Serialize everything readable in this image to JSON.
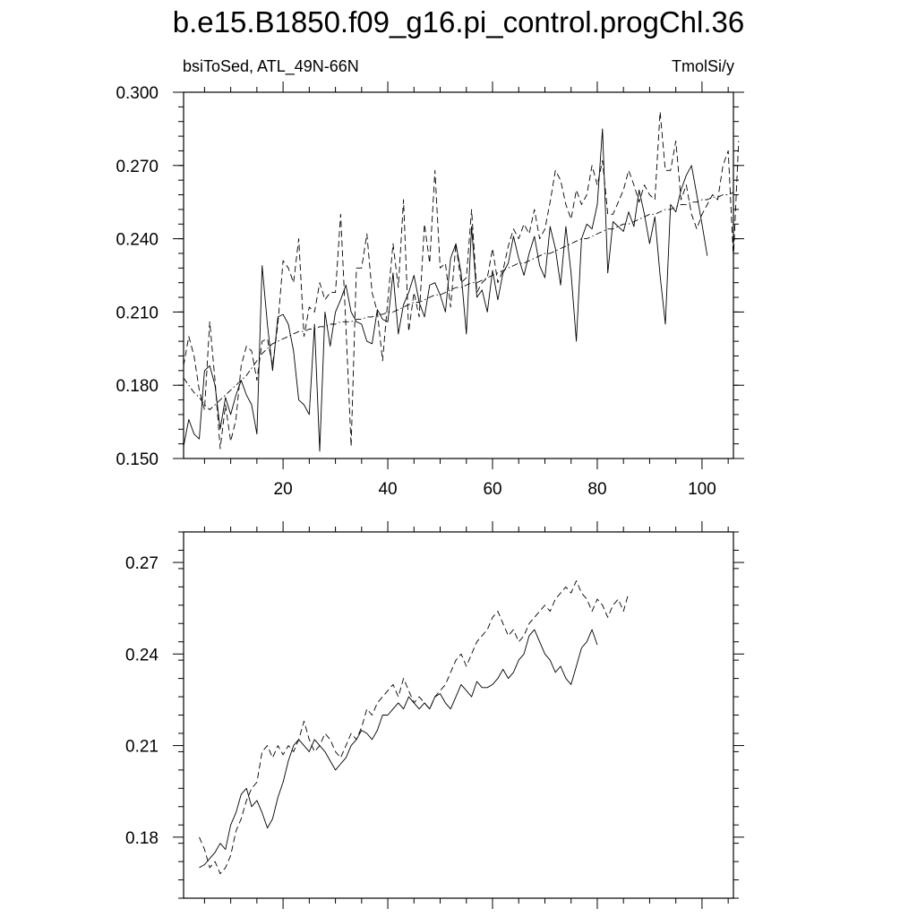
{
  "figure": {
    "title": "b.e15.B1850.f09_g16.pi_control.progChl.36",
    "subtitle_left": "bsiToSed, ATL_49N-66N",
    "subtitle_right": "TmolSi/y"
  },
  "chart_data": [
    {
      "type": "line",
      "xlim": [
        1,
        106
      ],
      "ylim": [
        0.15,
        0.3
      ],
      "x_ticks": [
        20,
        40,
        60,
        80,
        100
      ],
      "y_ticks": [
        "0.150",
        "0.180",
        "0.210",
        "0.240",
        "0.270",
        "0.300"
      ],
      "grid": false,
      "series": [
        {
          "style": "solid",
          "x_start": 1,
          "values": [
            0.155,
            0.166,
            0.16,
            0.158,
            0.186,
            0.188,
            0.18,
            0.162,
            0.175,
            0.168,
            0.176,
            0.182,
            0.176,
            0.172,
            0.16,
            0.229,
            0.205,
            0.186,
            0.208,
            0.209,
            0.205,
            0.194,
            0.174,
            0.172,
            0.168,
            0.205,
            0.153,
            0.21,
            0.196,
            0.21,
            0.215,
            0.221,
            0.21,
            0.206,
            0.205,
            0.198,
            0.197,
            0.211,
            0.207,
            0.206,
            0.226,
            0.201,
            0.213,
            0.218,
            0.225,
            0.214,
            0.208,
            0.221,
            0.222,
            0.217,
            0.21,
            0.232,
            0.238,
            0.226,
            0.201,
            0.245,
            0.216,
            0.219,
            0.21,
            0.227,
            0.215,
            0.226,
            0.23,
            0.241,
            0.232,
            0.225,
            0.234,
            0.241,
            0.229,
            0.224,
            0.245,
            0.236,
            0.221,
            0.245,
            0.226,
            0.198,
            0.24,
            0.246,
            0.244,
            0.254,
            0.285,
            0.226,
            0.247,
            0.245,
            0.243,
            0.251,
            0.245,
            0.26,
            0.25,
            0.238,
            0.249,
            0.225,
            0.205,
            0.254,
            0.251,
            0.26,
            0.266,
            0.27,
            0.258,
            0.246,
            0.233
          ]
        },
        {
          "style": "dashed",
          "x_start": 1,
          "values": [
            0.188,
            0.2,
            0.192,
            0.178,
            0.17,
            0.206,
            0.182,
            0.154,
            0.172,
            0.157,
            0.166,
            0.188,
            0.196,
            0.194,
            0.182,
            0.198,
            0.199,
            0.188,
            0.205,
            0.231,
            0.228,
            0.222,
            0.24,
            0.2,
            0.212,
            0.21,
            0.222,
            0.215,
            0.218,
            0.218,
            0.25,
            0.204,
            0.155,
            0.228,
            0.228,
            0.242,
            0.218,
            0.21,
            0.19,
            0.215,
            0.238,
            0.22,
            0.256,
            0.202,
            0.218,
            0.208,
            0.246,
            0.23,
            0.268,
            0.228,
            0.23,
            0.212,
            0.238,
            0.222,
            0.224,
            0.252,
            0.218,
            0.222,
            0.224,
            0.236,
            0.222,
            0.227,
            0.237,
            0.244,
            0.24,
            0.246,
            0.242,
            0.252,
            0.24,
            0.244,
            0.255,
            0.268,
            0.264,
            0.254,
            0.248,
            0.26,
            0.254,
            0.258,
            0.27,
            0.262,
            0.272,
            0.25,
            0.25,
            0.255,
            0.26,
            0.268,
            0.262,
            0.255,
            0.262,
            0.258,
            0.256,
            0.292,
            0.268,
            0.268,
            0.28,
            0.256,
            0.262,
            0.25,
            0.244,
            0.25,
            0.254,
            0.258,
            0.256,
            0.27,
            0.276,
            0.232,
            0.28
          ]
        },
        {
          "style": "dash-dot",
          "x_start": 1,
          "values": [
            0.183,
            0.18,
            0.177,
            0.175,
            0.172,
            0.17,
            0.172,
            0.174,
            0.176,
            0.178,
            0.18,
            0.182,
            0.184,
            0.187,
            0.19,
            0.193,
            0.195,
            0.197,
            0.198,
            0.199,
            0.2,
            0.201,
            0.202,
            0.202,
            0.203,
            0.203,
            0.204,
            0.204,
            0.205,
            0.205,
            0.206,
            0.206,
            0.206,
            0.207,
            0.207,
            0.208,
            0.208,
            0.209,
            0.209,
            0.21,
            0.21,
            0.211,
            0.212,
            0.213,
            0.214,
            0.214,
            0.215,
            0.216,
            0.217,
            0.217,
            0.218,
            0.219,
            0.22,
            0.22,
            0.221,
            0.222,
            0.222,
            0.223,
            0.224,
            0.225,
            0.226,
            0.227,
            0.228,
            0.229,
            0.23,
            0.23,
            0.231,
            0.232,
            0.233,
            0.234,
            0.234,
            0.235,
            0.236,
            0.237,
            0.238,
            0.239,
            0.24,
            0.24,
            0.241,
            0.242,
            0.243,
            0.244,
            0.244,
            0.245,
            0.246,
            0.246,
            0.247,
            0.248,
            0.249,
            0.25,
            0.25,
            0.251,
            0.252,
            0.252,
            0.253,
            0.254,
            0.254,
            0.255,
            0.255,
            0.256,
            0.256,
            0.257,
            0.257,
            0.258,
            0.258,
            0.259
          ]
        }
      ]
    },
    {
      "type": "line",
      "xlim": [
        1,
        106
      ],
      "ylim": [
        0.16,
        0.28
      ],
      "y_ticks": [
        "0.18",
        "0.21",
        "0.24",
        "0.27"
      ],
      "grid": false,
      "series": [
        {
          "style": "solid",
          "x_start": 4,
          "values": [
            0.17,
            0.171,
            0.173,
            0.175,
            0.178,
            0.176,
            0.184,
            0.188,
            0.194,
            0.196,
            0.19,
            0.192,
            0.188,
            0.183,
            0.186,
            0.193,
            0.198,
            0.205,
            0.21,
            0.212,
            0.21,
            0.208,
            0.212,
            0.21,
            0.208,
            0.205,
            0.202,
            0.204,
            0.206,
            0.21,
            0.212,
            0.215,
            0.214,
            0.212,
            0.215,
            0.22,
            0.22,
            0.222,
            0.224,
            0.222,
            0.226,
            0.224,
            0.222,
            0.224,
            0.222,
            0.226,
            0.227,
            0.224,
            0.222,
            0.226,
            0.23,
            0.228,
            0.226,
            0.231,
            0.229,
            0.229,
            0.23,
            0.232,
            0.235,
            0.232,
            0.234,
            0.238,
            0.24,
            0.246,
            0.248,
            0.244,
            0.24,
            0.238,
            0.234,
            0.236,
            0.232,
            0.23,
            0.236,
            0.242,
            0.244,
            0.248,
            0.243
          ]
        },
        {
          "style": "dashed",
          "x_start": 4,
          "values": [
            0.18,
            0.176,
            0.17,
            0.172,
            0.168,
            0.17,
            0.174,
            0.182,
            0.186,
            0.192,
            0.196,
            0.198,
            0.208,
            0.21,
            0.206,
            0.21,
            0.207,
            0.21,
            0.208,
            0.212,
            0.218,
            0.212,
            0.208,
            0.21,
            0.214,
            0.212,
            0.208,
            0.206,
            0.21,
            0.214,
            0.212,
            0.216,
            0.222,
            0.22,
            0.224,
            0.226,
            0.228,
            0.23,
            0.226,
            0.232,
            0.228,
            0.224,
            0.226,
            0.224,
            0.222,
            0.226,
            0.228,
            0.23,
            0.234,
            0.238,
            0.24,
            0.236,
            0.24,
            0.244,
            0.246,
            0.248,
            0.252,
            0.254,
            0.25,
            0.246,
            0.248,
            0.244,
            0.246,
            0.25,
            0.252,
            0.254,
            0.256,
            0.254,
            0.258,
            0.26,
            0.262,
            0.26,
            0.264,
            0.26,
            0.258,
            0.254,
            0.258,
            0.256,
            0.252,
            0.256,
            0.258,
            0.254,
            0.26
          ]
        }
      ]
    }
  ]
}
